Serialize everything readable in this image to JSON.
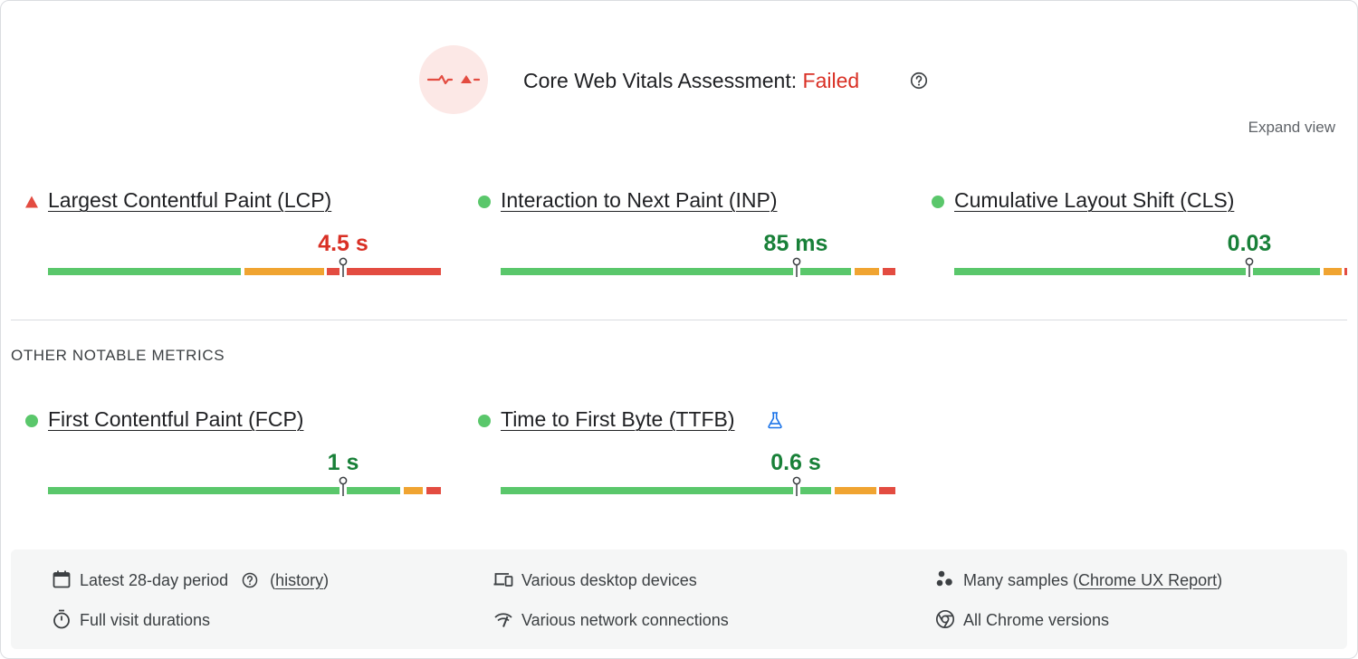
{
  "header": {
    "assessment_label": "Core Web Vitals Assessment:",
    "assessment_status": "Failed",
    "status_icon": "failed-vitals-icon",
    "help_icon": "help-circle-icon",
    "expand_label": "Expand view"
  },
  "colors": {
    "good": "#5ac76b",
    "needs_improvement": "#f0a431",
    "poor": "#e34c41",
    "good_text": "#188038",
    "poor_text": "#d93025",
    "badge_bg": "#fce8e6"
  },
  "core_metrics": [
    {
      "name": "Largest Contentful Paint (LCP)",
      "value": "4.5 s",
      "status": "poor",
      "indicator": "triangle-warning-icon"
    },
    {
      "name": "Interaction to Next Paint (INP)",
      "value": "85 ms",
      "status": "good",
      "indicator": "green-dot-icon"
    },
    {
      "name": "Cumulative Layout Shift (CLS)",
      "value": "0.03",
      "status": "good",
      "indicator": "green-dot-icon"
    }
  ],
  "other_title": "OTHER NOTABLE METRICS",
  "other_metrics": [
    {
      "name": "First Contentful Paint (FCP)",
      "value": "1 s",
      "status": "good",
      "indicator": "green-dot-icon"
    },
    {
      "name": "Time to First Byte (TTFB)",
      "value": "0.6 s",
      "status": "good",
      "indicator": "green-dot-icon",
      "extra_icon": "flask-experimental-icon"
    }
  ],
  "footer": {
    "period": {
      "text": "Latest 28-day period",
      "link": "history",
      "icon": "calendar-icon"
    },
    "devices": {
      "text": "Various desktop devices",
      "icon": "devices-icon"
    },
    "samples": {
      "text": "Many samples (",
      "link": "Chrome UX Report",
      "suffix": ")",
      "icon": "samples-dots-icon"
    },
    "durations": {
      "text": "Full visit durations",
      "icon": "stopwatch-icon"
    },
    "network": {
      "text": "Various network connections",
      "icon": "network-signal-icon"
    },
    "versions": {
      "text": "All Chrome versions",
      "icon": "chrome-logo-icon"
    }
  }
}
